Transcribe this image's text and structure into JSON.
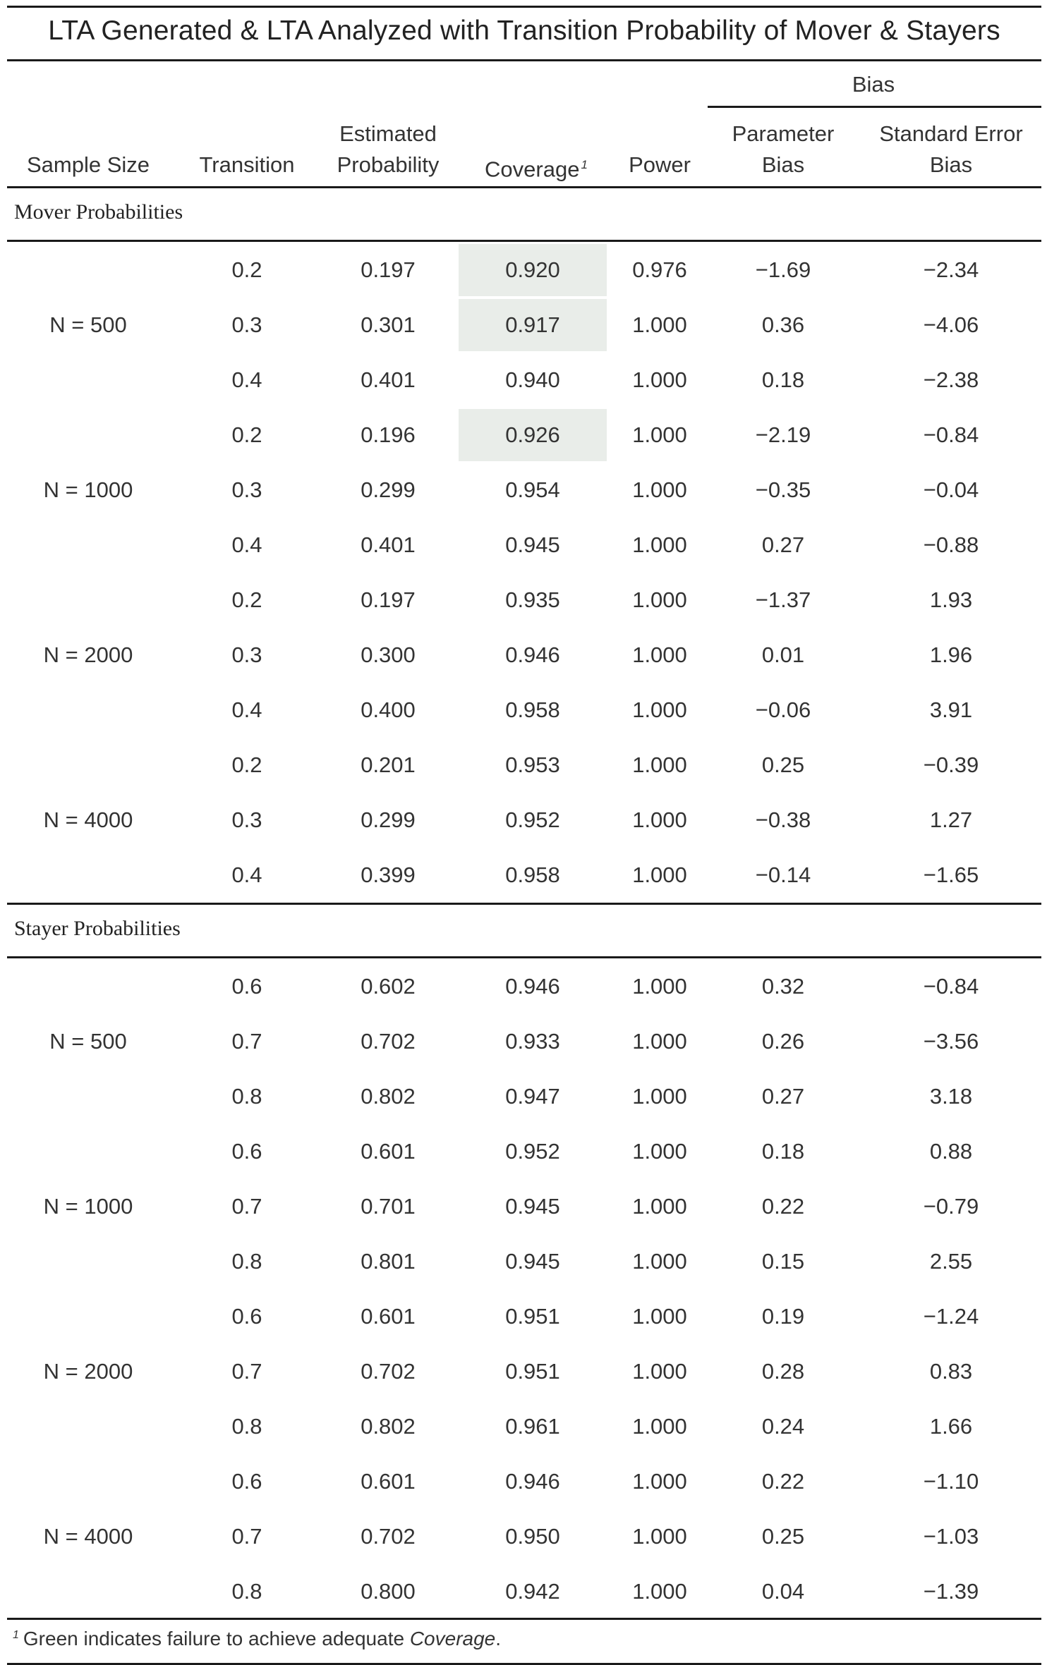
{
  "title": "LTA Generated & LTA Analyzed with Transition Probability of Mover & Stayers",
  "headers": {
    "bias_group": "Bias",
    "sample_size": "Sample Size",
    "transition": "Transition",
    "estimated_line1": "Estimated",
    "estimated_line2": "Probability",
    "coverage": "Coverage",
    "coverage_note": "1",
    "power": "Power",
    "param_bias_line1": "Parameter",
    "param_bias_line2": "Bias",
    "se_bias_line1": "Standard Error",
    "se_bias_line2": "Bias"
  },
  "highlight_color": "#e9ede9",
  "sections": [
    {
      "label": "Mover Probabilities",
      "groups": [
        {
          "size": "N = 500",
          "rows": [
            {
              "transition": "0.2",
              "estimated": "0.197",
              "coverage": "0.920",
              "highlight": true,
              "power": "0.976",
              "param_bias": "−1.69",
              "se_bias": "−2.34"
            },
            {
              "transition": "0.3",
              "estimated": "0.301",
              "coverage": "0.917",
              "highlight": true,
              "power": "1.000",
              "param_bias": "0.36",
              "se_bias": "−4.06"
            },
            {
              "transition": "0.4",
              "estimated": "0.401",
              "coverage": "0.940",
              "highlight": false,
              "power": "1.000",
              "param_bias": "0.18",
              "se_bias": "−2.38"
            }
          ]
        },
        {
          "size": "N = 1000",
          "rows": [
            {
              "transition": "0.2",
              "estimated": "0.196",
              "coverage": "0.926",
              "highlight": true,
              "power": "1.000",
              "param_bias": "−2.19",
              "se_bias": "−0.84"
            },
            {
              "transition": "0.3",
              "estimated": "0.299",
              "coverage": "0.954",
              "highlight": false,
              "power": "1.000",
              "param_bias": "−0.35",
              "se_bias": "−0.04"
            },
            {
              "transition": "0.4",
              "estimated": "0.401",
              "coverage": "0.945",
              "highlight": false,
              "power": "1.000",
              "param_bias": "0.27",
              "se_bias": "−0.88"
            }
          ]
        },
        {
          "size": "N = 2000",
          "rows": [
            {
              "transition": "0.2",
              "estimated": "0.197",
              "coverage": "0.935",
              "highlight": false,
              "power": "1.000",
              "param_bias": "−1.37",
              "se_bias": "1.93"
            },
            {
              "transition": "0.3",
              "estimated": "0.300",
              "coverage": "0.946",
              "highlight": false,
              "power": "1.000",
              "param_bias": "0.01",
              "se_bias": "1.96"
            },
            {
              "transition": "0.4",
              "estimated": "0.400",
              "coverage": "0.958",
              "highlight": false,
              "power": "1.000",
              "param_bias": "−0.06",
              "se_bias": "3.91"
            }
          ]
        },
        {
          "size": "N = 4000",
          "rows": [
            {
              "transition": "0.2",
              "estimated": "0.201",
              "coverage": "0.953",
              "highlight": false,
              "power": "1.000",
              "param_bias": "0.25",
              "se_bias": "−0.39"
            },
            {
              "transition": "0.3",
              "estimated": "0.299",
              "coverage": "0.952",
              "highlight": false,
              "power": "1.000",
              "param_bias": "−0.38",
              "se_bias": "1.27"
            },
            {
              "transition": "0.4",
              "estimated": "0.399",
              "coverage": "0.958",
              "highlight": false,
              "power": "1.000",
              "param_bias": "−0.14",
              "se_bias": "−1.65"
            }
          ]
        }
      ]
    },
    {
      "label": "Stayer Probabilities",
      "groups": [
        {
          "size": "N = 500",
          "rows": [
            {
              "transition": "0.6",
              "estimated": "0.602",
              "coverage": "0.946",
              "highlight": false,
              "power": "1.000",
              "param_bias": "0.32",
              "se_bias": "−0.84"
            },
            {
              "transition": "0.7",
              "estimated": "0.702",
              "coverage": "0.933",
              "highlight": false,
              "power": "1.000",
              "param_bias": "0.26",
              "se_bias": "−3.56"
            },
            {
              "transition": "0.8",
              "estimated": "0.802",
              "coverage": "0.947",
              "highlight": false,
              "power": "1.000",
              "param_bias": "0.27",
              "se_bias": "3.18"
            }
          ]
        },
        {
          "size": "N = 1000",
          "rows": [
            {
              "transition": "0.6",
              "estimated": "0.601",
              "coverage": "0.952",
              "highlight": false,
              "power": "1.000",
              "param_bias": "0.18",
              "se_bias": "0.88"
            },
            {
              "transition": "0.7",
              "estimated": "0.701",
              "coverage": "0.945",
              "highlight": false,
              "power": "1.000",
              "param_bias": "0.22",
              "se_bias": "−0.79"
            },
            {
              "transition": "0.8",
              "estimated": "0.801",
              "coverage": "0.945",
              "highlight": false,
              "power": "1.000",
              "param_bias": "0.15",
              "se_bias": "2.55"
            }
          ]
        },
        {
          "size": "N = 2000",
          "rows": [
            {
              "transition": "0.6",
              "estimated": "0.601",
              "coverage": "0.951",
              "highlight": false,
              "power": "1.000",
              "param_bias": "0.19",
              "se_bias": "−1.24"
            },
            {
              "transition": "0.7",
              "estimated": "0.702",
              "coverage": "0.951",
              "highlight": false,
              "power": "1.000",
              "param_bias": "0.28",
              "se_bias": "0.83"
            },
            {
              "transition": "0.8",
              "estimated": "0.802",
              "coverage": "0.961",
              "highlight": false,
              "power": "1.000",
              "param_bias": "0.24",
              "se_bias": "1.66"
            }
          ]
        },
        {
          "size": "N = 4000",
          "rows": [
            {
              "transition": "0.6",
              "estimated": "0.601",
              "coverage": "0.946",
              "highlight": false,
              "power": "1.000",
              "param_bias": "0.22",
              "se_bias": "−1.10"
            },
            {
              "transition": "0.7",
              "estimated": "0.702",
              "coverage": "0.950",
              "highlight": false,
              "power": "1.000",
              "param_bias": "0.25",
              "se_bias": "−1.03"
            },
            {
              "transition": "0.8",
              "estimated": "0.800",
              "coverage": "0.942",
              "highlight": false,
              "power": "1.000",
              "param_bias": "0.04",
              "se_bias": "−1.39"
            }
          ]
        }
      ]
    }
  ],
  "footnote": {
    "mark": "1",
    "text_before": "Green indicates failure to achieve adequate ",
    "emphasis": "Coverage",
    "text_after": "."
  }
}
